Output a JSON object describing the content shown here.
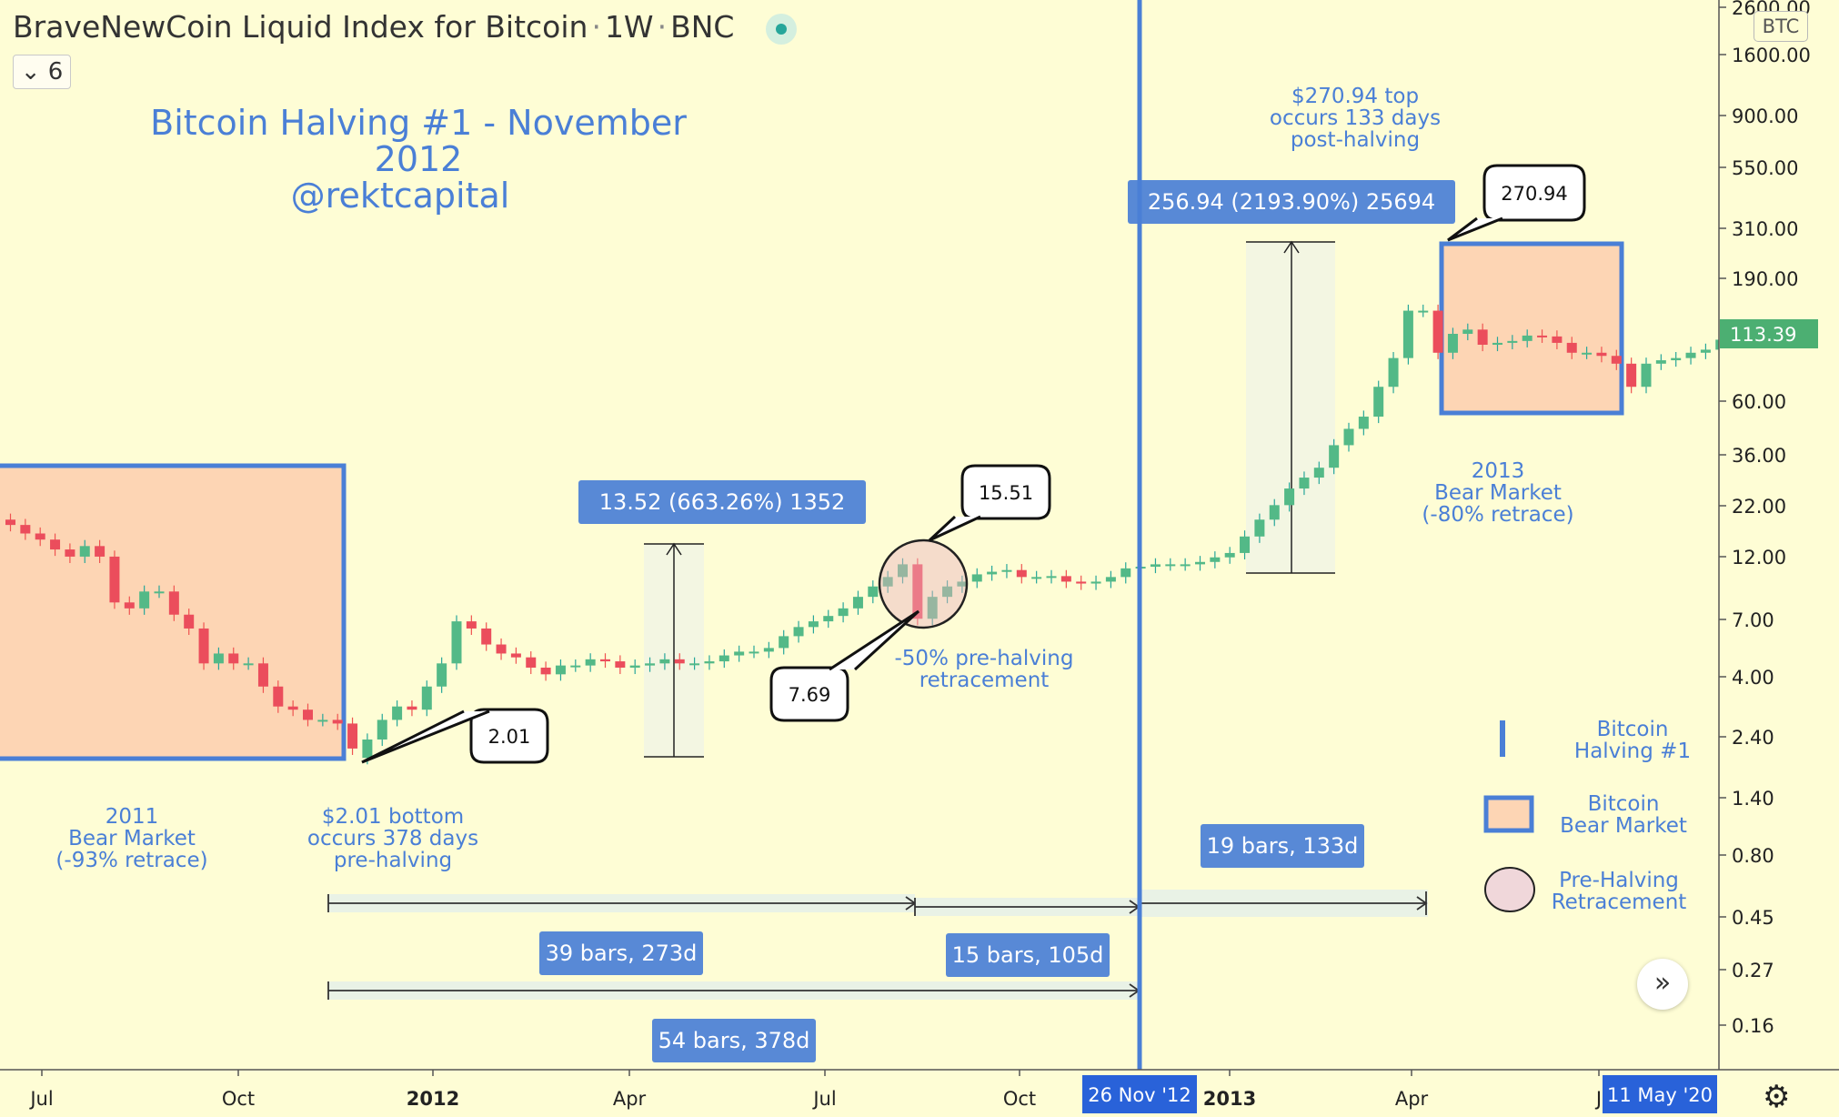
{
  "header": {
    "symbol": "BraveNewCoin Liquid Index for Bitcoin",
    "interval": "1W",
    "exchange": "BNC",
    "indicator_count": "6",
    "currency_badge": "BTC"
  },
  "annotations": {
    "title": "Bitcoin Halving #1 - November 2012",
    "handle": "@rektcapital",
    "bear_2011": "2011\nBear Market\n(-93% retrace)",
    "bottom_note": "$2.01 bottom\noccurs 378 days\npre-halving",
    "pre_halving_note": "-50% pre-halving\nretracement",
    "top_note": "$270.94 top\noccurs 133 days\npost-halving",
    "bear_2013": "2013\nBear Market\n(-80% retrace)"
  },
  "legend_items": [
    {
      "label": "Bitcoin\nHalving #1",
      "icon": "halving-line-icon"
    },
    {
      "label": "Bitcoin\nBear Market",
      "icon": "bear-market-box-icon"
    },
    {
      "label": "Pre-Halving\nRetracement",
      "icon": "retracement-circle-icon"
    }
  ],
  "chart_data": {
    "type": "candlestick",
    "interval": "1W",
    "y_scale": "log",
    "y_ticks": [
      "2600.00",
      "1600.00",
      "900.00",
      "550.00",
      "310.00",
      "190.00",
      "113.39",
      "60.00",
      "36.00",
      "22.00",
      "12.00",
      "7.00",
      "4.00",
      "2.40",
      "1.40",
      "0.80",
      "0.45",
      "0.27",
      "0.16"
    ],
    "y_tick_values": [
      2600,
      1600,
      900,
      550,
      310,
      190,
      60,
      36,
      22,
      12,
      7,
      4,
      2.4,
      1.4,
      0.8,
      0.45,
      0.27,
      0.16
    ],
    "x_ticks": [
      "Jul",
      "Oct",
      "2012",
      "Apr",
      "Jul",
      "Oct",
      "2013",
      "Apr",
      "J"
    ],
    "last_price": "113.39",
    "halving_date_label": "26 Nov '12",
    "cursor_date_label": "11 May '20",
    "callouts": [
      "2.01",
      "15.51",
      "7.69",
      "270.94"
    ],
    "measurements": [
      "13.52 (663.26%) 1352",
      "256.94 (2193.90%) 25694"
    ],
    "ranges": [
      "39 bars, 273d",
      "15 bars, 105d",
      "54 bars, 378d",
      "19 bars, 133d"
    ],
    "candles_close": [
      19,
      17.5,
      16.5,
      15,
      14,
      15.5,
      14,
      9,
      8.5,
      10,
      10,
      8,
      7,
      5,
      5.5,
      5,
      5,
      4,
      3.3,
      3.2,
      2.9,
      2.9,
      2.8,
      2.2,
      2.4,
      2.9,
      3.3,
      3.2,
      4,
      5,
      7.5,
      7,
      6,
      5.5,
      5.3,
      4.8,
      4.5,
      4.9,
      4.9,
      5.2,
      5.1,
      4.8,
      4.9,
      5,
      5.2,
      5,
      5,
      5.1,
      5.4,
      5.6,
      5.6,
      5.8,
      6.5,
      7.1,
      7.5,
      7.9,
      8.5,
      9.5,
      10.5,
      11.5,
      13,
      7.69,
      9.5,
      10.5,
      11,
      11.8,
      12.1,
      12.3,
      11.5,
      11.5,
      11.6,
      11,
      10.8,
      11,
      11.5,
      12.5,
      12.7,
      13,
      13,
      13,
      13.3,
      13.9,
      14.5,
      17,
      20,
      23,
      27,
      30,
      33,
      41,
      48,
      54,
      72,
      95,
      150,
      150,
      100,
      120,
      125,
      108,
      110,
      112,
      118,
      117,
      110,
      100,
      100,
      97,
      90,
      72,
      90,
      93,
      95,
      100,
      103,
      113.39
    ],
    "candles_open": [
      20,
      19,
      17.5,
      16.5,
      15,
      14,
      15.5,
      14,
      9,
      8.5,
      10,
      10,
      8,
      7,
      5,
      5.5,
      5,
      5,
      4,
      3.3,
      3.2,
      2.9,
      2.9,
      2.8,
      2.01,
      2.4,
      2.9,
      3.3,
      3.2,
      4,
      5,
      7.5,
      7,
      6,
      5.5,
      5.3,
      4.8,
      4.5,
      4.9,
      4.9,
      5.2,
      5.1,
      4.8,
      4.9,
      5,
      5.2,
      5,
      5,
      5.1,
      5.4,
      5.6,
      5.6,
      5.8,
      6.5,
      7.1,
      7.5,
      7.9,
      8.5,
      9.5,
      10.5,
      11.5,
      13,
      7.69,
      9.5,
      10.5,
      11,
      11.8,
      12.1,
      12.3,
      11.5,
      11.5,
      11.6,
      11,
      10.8,
      11,
      11.5,
      12.5,
      12.7,
      13,
      13,
      13,
      13.3,
      13.9,
      14.5,
      17,
      20,
      23,
      27,
      30,
      33,
      41,
      48,
      54,
      72,
      95,
      150,
      150,
      100,
      120,
      125,
      108,
      110,
      112,
      118,
      117,
      110,
      100,
      100,
      97,
      90,
      72,
      90,
      93,
      95,
      100,
      103
    ],
    "ylim": [
      0.12,
      3000
    ]
  }
}
